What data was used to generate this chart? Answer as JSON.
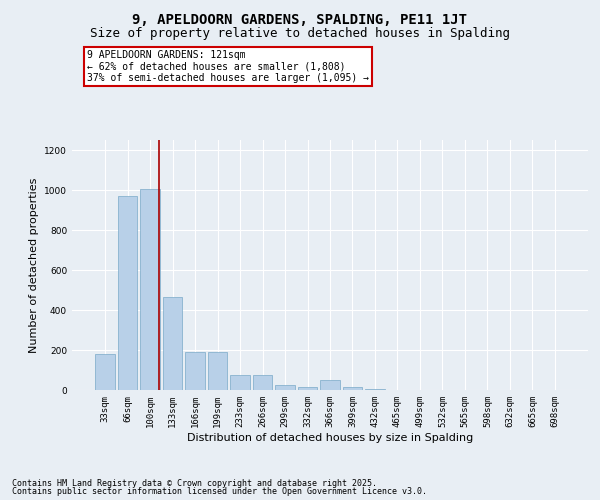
{
  "title": "9, APELDOORN GARDENS, SPALDING, PE11 1JT",
  "subtitle": "Size of property relative to detached houses in Spalding",
  "xlabel": "Distribution of detached houses by size in Spalding",
  "ylabel": "Number of detached properties",
  "categories": [
    "33sqm",
    "66sqm",
    "100sqm",
    "133sqm",
    "166sqm",
    "199sqm",
    "233sqm",
    "266sqm",
    "299sqm",
    "332sqm",
    "366sqm",
    "399sqm",
    "432sqm",
    "465sqm",
    "499sqm",
    "532sqm",
    "565sqm",
    "598sqm",
    "632sqm",
    "665sqm",
    "698sqm"
  ],
  "values": [
    180,
    970,
    1005,
    465,
    190,
    190,
    75,
    75,
    25,
    15,
    50,
    15,
    5,
    0,
    0,
    0,
    0,
    0,
    0,
    0,
    0
  ],
  "bar_color": "#b8d0e8",
  "bar_edge_color": "#7aaac8",
  "vline_x": 2.42,
  "vline_color": "#aa0000",
  "annotation_line1": "9 APELDOORN GARDENS: 121sqm",
  "annotation_line2": "← 62% of detached houses are smaller (1,808)",
  "annotation_line3": "37% of semi-detached houses are larger (1,095) →",
  "annotation_box_color": "#cc0000",
  "ylim": [
    0,
    1250
  ],
  "yticks": [
    0,
    200,
    400,
    600,
    800,
    1000,
    1200
  ],
  "footnote1": "Contains HM Land Registry data © Crown copyright and database right 2025.",
  "footnote2": "Contains public sector information licensed under the Open Government Licence v3.0.",
  "bg_color": "#e8eef4",
  "plot_bg_color": "#e8eef4",
  "grid_color": "#ffffff",
  "title_fontsize": 10,
  "subtitle_fontsize": 9,
  "axis_label_fontsize": 8,
  "tick_fontsize": 6.5,
  "annotation_fontsize": 7,
  "footnote_fontsize": 6
}
